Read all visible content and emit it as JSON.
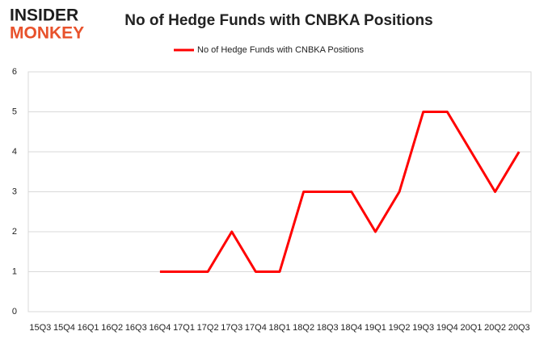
{
  "logo": {
    "top": "INSIDER",
    "bottom": "MONKEY"
  },
  "chart_data": {
    "type": "line",
    "title": "No of Hedge Funds with CNBKA Positions",
    "categories": [
      "15Q3",
      "15Q4",
      "16Q1",
      "16Q2",
      "16Q3",
      "16Q4",
      "17Q1",
      "17Q2",
      "17Q3",
      "17Q4",
      "18Q1",
      "18Q2",
      "18Q3",
      "18Q4",
      "19Q1",
      "19Q2",
      "19Q3",
      "19Q4",
      "20Q1",
      "20Q2",
      "20Q3"
    ],
    "series": [
      {
        "name": "No of Hedge Funds with CNBKA Positions",
        "color": "#ff0000",
        "values": [
          null,
          null,
          null,
          null,
          null,
          1,
          1,
          1,
          2,
          1,
          1,
          3,
          3,
          3,
          2,
          3,
          5,
          5,
          4,
          3,
          4
        ]
      }
    ],
    "ylim": [
      0,
      6
    ],
    "yticks": [
      0,
      1,
      2,
      3,
      4,
      5,
      6
    ],
    "grid": true,
    "legend": "top"
  }
}
